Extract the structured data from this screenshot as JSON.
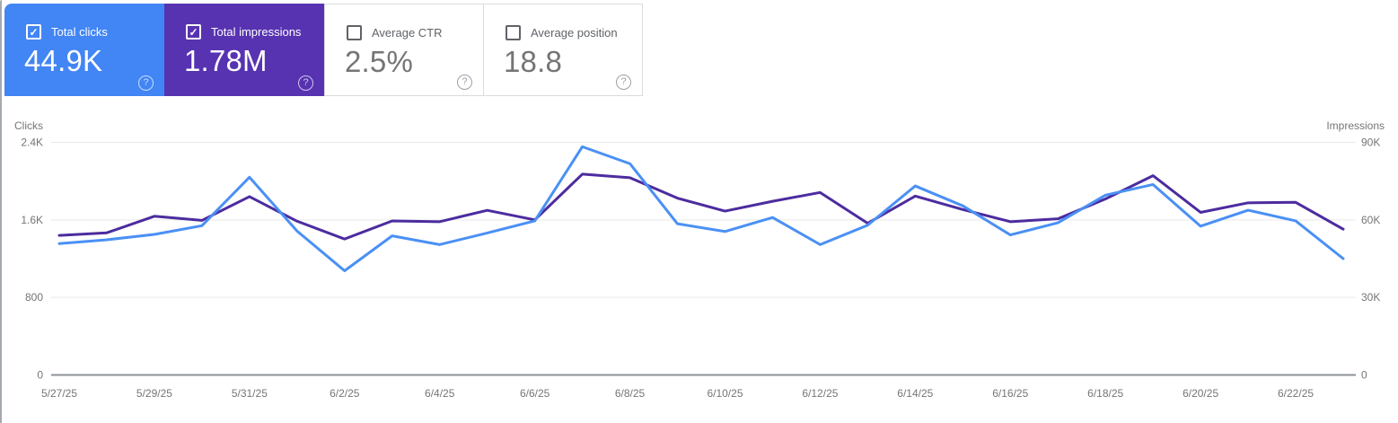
{
  "cards": [
    {
      "label": "Total clicks",
      "value": "44.9K",
      "checked": true,
      "bg": "#4285f4",
      "label_color": "#ffffff",
      "value_color": "#ffffff"
    },
    {
      "label": "Total impressions",
      "value": "1.78M",
      "checked": true,
      "bg": "#5733b1",
      "label_color": "#ffffff",
      "value_color": "#ffffff"
    },
    {
      "label": "Average CTR",
      "value": "2.5%",
      "checked": false,
      "bg": "#ffffff",
      "label_color": "#5f6368",
      "value_color": "#757575"
    },
    {
      "label": "Average position",
      "value": "18.8",
      "checked": false,
      "bg": "#ffffff",
      "label_color": "#5f6368",
      "value_color": "#757575"
    }
  ],
  "icons": {
    "check": "✓",
    "help": "?"
  },
  "colors": {
    "clicks_line": "#4a90f5",
    "impressions_line": "#4c2c9f",
    "gridline": "#e9e9e9",
    "axis_baseline": "#8d9298",
    "axis_text": "#757575",
    "card_border": "#dadce0"
  },
  "chart_data": {
    "type": "line",
    "title": "",
    "grid": true,
    "legend": "none",
    "x": [
      "5/27/25",
      "5/28/25",
      "5/29/25",
      "5/30/25",
      "5/31/25",
      "6/1/25",
      "6/2/25",
      "6/3/25",
      "6/4/25",
      "6/5/25",
      "6/6/25",
      "6/7/25",
      "6/8/25",
      "6/9/25",
      "6/10/25",
      "6/11/25",
      "6/12/25",
      "6/13/25",
      "6/14/25",
      "6/15/25",
      "6/16/25",
      "6/17/25",
      "6/18/25",
      "6/19/25",
      "6/20/25",
      "6/21/25",
      "6/22/25",
      "6/23/25"
    ],
    "x_label_every": 2,
    "left_axis": {
      "title": "Clicks",
      "max": 2400,
      "ticks": [
        {
          "v": 0,
          "label": "0"
        },
        {
          "v": 800,
          "label": "800"
        },
        {
          "v": 1600,
          "label": "1.6K"
        },
        {
          "v": 2400,
          "label": "2.4K"
        }
      ]
    },
    "right_axis": {
      "title": "Impressions",
      "max": 90000,
      "ticks": [
        {
          "v": 0,
          "label": "0"
        },
        {
          "v": 30000,
          "label": "30K"
        },
        {
          "v": 60000,
          "label": "60K"
        },
        {
          "v": 90000,
          "label": "90K"
        }
      ]
    },
    "series": [
      {
        "name": "Clicks",
        "axis": "left",
        "color": "#4a90f5",
        "values": [
          1355,
          1395,
          1450,
          1540,
          2040,
          1485,
          1075,
          1435,
          1345,
          1465,
          1590,
          2355,
          2180,
          1560,
          1480,
          1625,
          1345,
          1545,
          1950,
          1745,
          1445,
          1570,
          1855,
          1965,
          1535,
          1700,
          1590,
          1200
        ]
      },
      {
        "name": "Impressions",
        "axis": "right",
        "color": "#4c2c9f",
        "values": [
          54000,
          55000,
          61400,
          59800,
          69000,
          59500,
          52600,
          59600,
          59300,
          63700,
          60000,
          77700,
          76300,
          68400,
          63400,
          67200,
          70600,
          58700,
          69200,
          64000,
          59300,
          60400,
          68100,
          77100,
          62900,
          66600,
          66800,
          56400
        ]
      }
    ]
  }
}
